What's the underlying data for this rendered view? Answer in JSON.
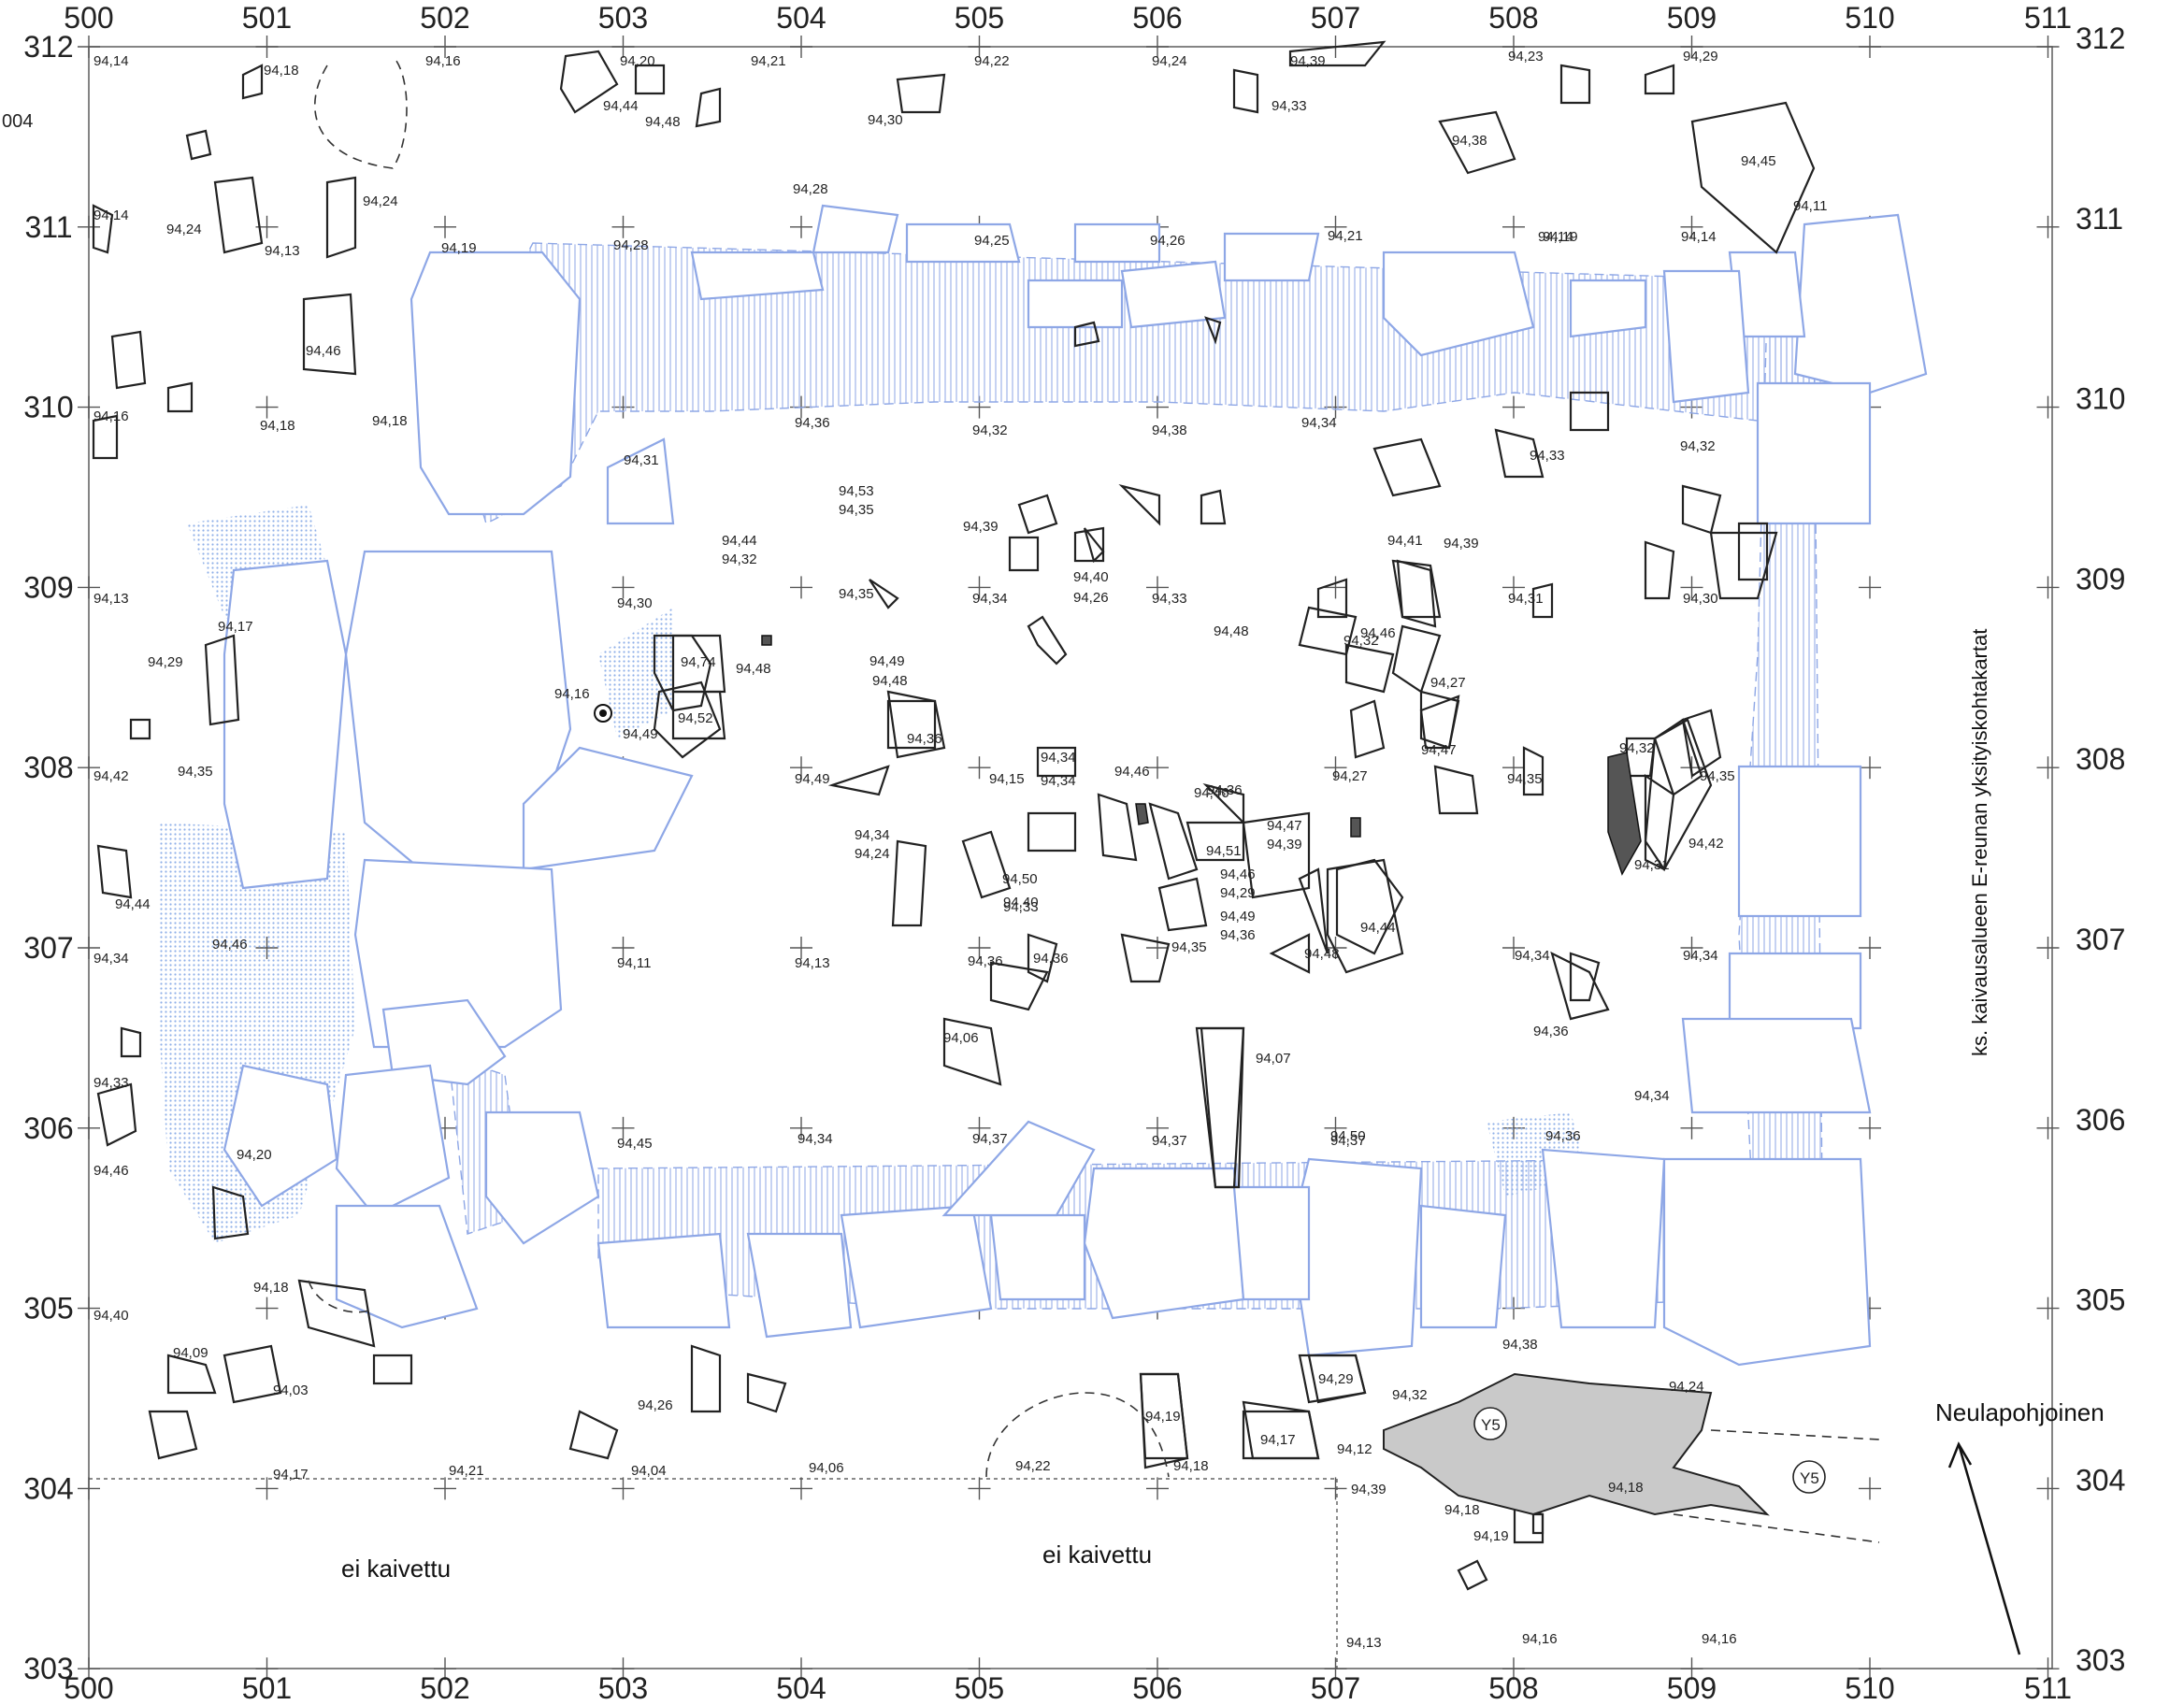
{
  "x_axis_top": [
    "500",
    "501",
    "502",
    "503",
    "504",
    "505",
    "506",
    "507",
    "508",
    "509",
    "510",
    "511"
  ],
  "x_axis_bottom": [
    "500",
    "501",
    "502",
    "503",
    "504",
    "505",
    "506",
    "507",
    "508",
    "509",
    "510",
    "511"
  ],
  "y_axis_left": [
    "312",
    "311",
    "310",
    "309",
    "308",
    "307",
    "306",
    "305",
    "304",
    "303"
  ],
  "y_axis_right": [
    "312",
    "311",
    "310",
    "309",
    "308",
    "307",
    "306",
    "305",
    "304",
    "303"
  ],
  "corner_label": "004",
  "area_labels": {
    "unexcavated_left": "ei kaivettu",
    "unexcavated_mid": "ei kaivettu",
    "north_arrow": "Neulapohjoinen",
    "side_note": "ks. kaivausalueen E-reunan yksityiskohtakartat"
  },
  "find_markers": [
    "Y5",
    "Y5"
  ],
  "elevations": [
    "94,14",
    "94,18",
    "94,16",
    "94,20",
    "94,21",
    "94,22",
    "94,24",
    "94,39",
    "94,23",
    "94,29",
    "94,44",
    "94,48",
    "94,30",
    "94,33",
    "94,38",
    "94,45",
    "94,11",
    "94,14",
    "94,14",
    "94,24",
    "94,13",
    "94,24",
    "94,19",
    "94,28",
    "94,28",
    "94,25",
    "94,26",
    "94,21",
    "94,19",
    "94,14",
    "94,46",
    "94,16",
    "94,18",
    "94,18",
    "94,36",
    "94,32",
    "94,38",
    "94,34",
    "94,33",
    "94,32",
    "94,31",
    "94,53",
    "94,35",
    "94,44",
    "94,32",
    "94,35",
    "94,39",
    "94,40",
    "94,26",
    "94,41",
    "94,39",
    "94,13",
    "94,17",
    "94,30",
    "94,34",
    "94,33",
    "94,31",
    "94,30",
    "94,32",
    "94,46",
    "94,48",
    "94,29",
    "94,35",
    "94,16",
    "94,74",
    "94,52",
    "94,49",
    "94,36",
    "94,49",
    "94,48",
    "94,48",
    "94,36",
    "94,27",
    "94,47",
    "94,42",
    "94,49",
    "94,15",
    "94,34",
    "94,34",
    "94,46",
    "94,27",
    "94,35",
    "94,32",
    "94,35",
    "94,44",
    "94,34",
    "94,24",
    "94,50",
    "94,33",
    "94,46",
    "94,47",
    "94,39",
    "94,31",
    "94,42",
    "94,51",
    "94,40",
    "94,46",
    "94,29",
    "94,49",
    "94,36",
    "94,44",
    "94,34",
    "94,46",
    "94,11",
    "94,13",
    "94,36",
    "94,36",
    "94,35",
    "94,48",
    "94,34",
    "94,34",
    "94,36",
    "94,33",
    "94,46",
    "94,20",
    "94,06",
    "94,07",
    "94,50",
    "94,45",
    "94,34",
    "94,37",
    "94,37",
    "94,37",
    "94,36",
    "94,34",
    "94,40",
    "94,18",
    "94,09",
    "94,03",
    "94,26",
    "94,19",
    "94,29",
    "94,32",
    "94,38",
    "94,24",
    "94,17",
    "94,12",
    "94,39",
    "94,22",
    "94,18",
    "94,18",
    "94,18",
    "94,19",
    "94,17",
    "94,21",
    "94,04",
    "94,06",
    "94,13",
    "94,16",
    "94,16",
    "94,14",
    "94,14"
  ]
}
